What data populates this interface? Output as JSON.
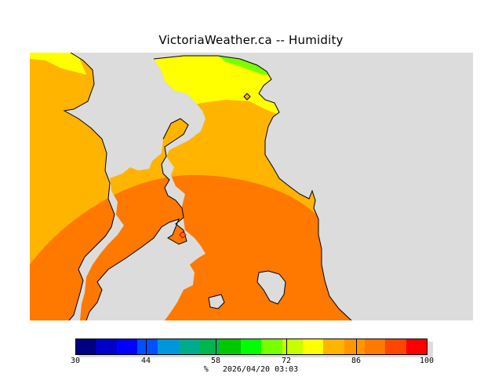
{
  "title": "VictoriaWeather.ca -- Humidity",
  "legend": {
    "min": 30,
    "max": 100,
    "step": 3.5,
    "colors": [
      "#000080",
      "#0000c8",
      "#0000ff",
      "#0050ff",
      "#0096dc",
      "#00aa8c",
      "#00b450",
      "#00c800",
      "#00ff00",
      "#78ff00",
      "#c8ff00",
      "#ffff00",
      "#ffb400",
      "#ff9600",
      "#ff7800",
      "#ff4600",
      "#ff0000"
    ],
    "tick_values": [
      30,
      44,
      58,
      72,
      86,
      100
    ],
    "tick_labels": [
      "30",
      "44",
      "58",
      "72",
      "86",
      "100"
    ]
  },
  "footer": {
    "unit": "%",
    "timestamp": "2026/04/20 03:03"
  },
  "map": {
    "land_color": "#dcdcdc",
    "zones": [
      "yellow",
      "light-orange",
      "orange"
    ]
  }
}
